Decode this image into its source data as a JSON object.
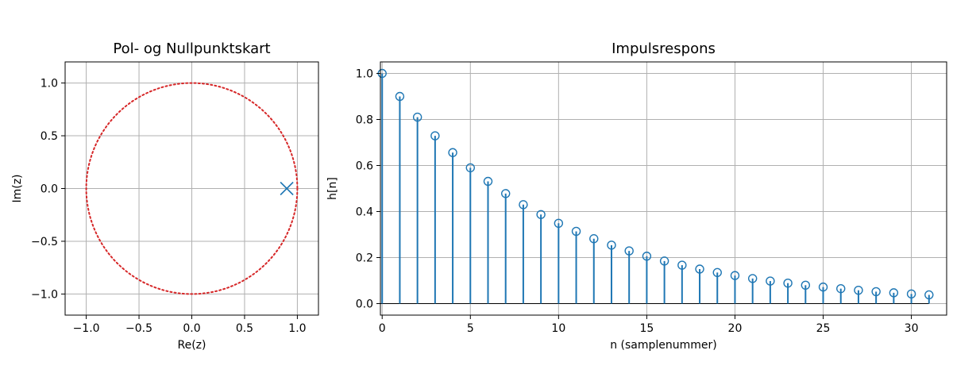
{
  "chart_data": [
    {
      "type": "scatter",
      "title": "Pol- og Nullpunktskart",
      "xlabel": "Re(z)",
      "ylabel": "Im(z)",
      "xlim": [
        -1.2,
        1.2
      ],
      "ylim": [
        -1.2,
        1.2
      ],
      "xticks": [
        -1.0,
        -0.5,
        0.0,
        0.5,
        1.0
      ],
      "yticks": [
        -1.0,
        -0.5,
        0.0,
        0.5,
        1.0
      ],
      "xtick_labels": [
        "−1.0",
        "−0.5",
        "0.0",
        "0.5",
        "1.0"
      ],
      "ytick_labels": [
        "−1.0",
        "−0.5",
        "0.0",
        "0.5",
        "1.0"
      ],
      "grid": true,
      "unit_circle": {
        "radius": 1.0,
        "style": "dotted",
        "color": "#d62728"
      },
      "poles": [
        {
          "re": 0.9,
          "im": 0.0
        }
      ],
      "zeros": [],
      "pole_color": "#1f77b4"
    },
    {
      "type": "stem",
      "title": "Impulsrespons",
      "xlabel": "n (samplenummer)",
      "ylabel": "h[n]",
      "xlim": [
        -0.1,
        32
      ],
      "ylim": [
        -0.05,
        1.05
      ],
      "xticks": [
        0,
        5,
        10,
        15,
        20,
        25,
        30
      ],
      "yticks": [
        0.0,
        0.2,
        0.4,
        0.6,
        0.8,
        1.0
      ],
      "xtick_labels": [
        "0",
        "5",
        "10",
        "15",
        "20",
        "25",
        "30"
      ],
      "ytick_labels": [
        "0.0",
        "0.2",
        "0.4",
        "0.6",
        "0.8",
        "1.0"
      ],
      "grid": true,
      "color": "#1f77b4",
      "x": [
        0,
        1,
        2,
        3,
        4,
        5,
        6,
        7,
        8,
        9,
        10,
        11,
        12,
        13,
        14,
        15,
        16,
        17,
        18,
        19,
        20,
        21,
        22,
        23,
        24,
        25,
        26,
        27,
        28,
        29,
        30,
        31
      ],
      "y": [
        1.0,
        0.9,
        0.81,
        0.729,
        0.656,
        0.59,
        0.531,
        0.478,
        0.43,
        0.387,
        0.349,
        0.314,
        0.282,
        0.254,
        0.229,
        0.206,
        0.185,
        0.167,
        0.15,
        0.135,
        0.122,
        0.109,
        0.098,
        0.089,
        0.08,
        0.072,
        0.065,
        0.058,
        0.052,
        0.047,
        0.042,
        0.038
      ]
    }
  ]
}
